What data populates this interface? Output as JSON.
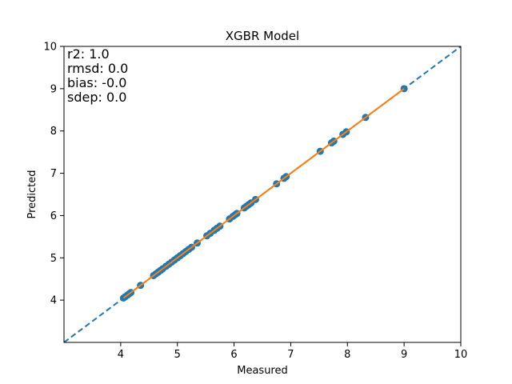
{
  "chart_data": {
    "type": "scatter",
    "title": "XGBR Model",
    "xlabel": "Measured",
    "ylabel": "Predicted",
    "xlim": [
      3,
      10
    ],
    "ylim": [
      3,
      10
    ],
    "xticks": [
      4,
      5,
      6,
      7,
      8,
      9,
      10
    ],
    "yticks": [
      4,
      5,
      6,
      7,
      8,
      9,
      10
    ],
    "grid": false,
    "colors": {
      "points": "#1f77b4",
      "fit": "#ff7f0e",
      "identity": "#1f77b4"
    },
    "stats": [
      "r2: 1.0",
      "rmsd: 0.0",
      "bias: -0.0",
      "sdep: 0.0"
    ],
    "points": [
      [
        4.05,
        4.05
      ],
      [
        4.08,
        4.08
      ],
      [
        4.12,
        4.12
      ],
      [
        4.15,
        4.15
      ],
      [
        4.18,
        4.18
      ],
      [
        4.35,
        4.35
      ],
      [
        4.58,
        4.58
      ],
      [
        4.62,
        4.62
      ],
      [
        4.66,
        4.66
      ],
      [
        4.7,
        4.7
      ],
      [
        4.74,
        4.74
      ],
      [
        4.8,
        4.8
      ],
      [
        4.85,
        4.85
      ],
      [
        4.9,
        4.9
      ],
      [
        4.95,
        4.95
      ],
      [
        5.0,
        5.0
      ],
      [
        5.05,
        5.05
      ],
      [
        5.1,
        5.1
      ],
      [
        5.15,
        5.15
      ],
      [
        5.2,
        5.2
      ],
      [
        5.25,
        5.25
      ],
      [
        5.35,
        5.35
      ],
      [
        5.52,
        5.52
      ],
      [
        5.58,
        5.58
      ],
      [
        5.65,
        5.65
      ],
      [
        5.7,
        5.7
      ],
      [
        5.75,
        5.75
      ],
      [
        5.92,
        5.92
      ],
      [
        5.98,
        5.98
      ],
      [
        6.02,
        6.02
      ],
      [
        6.05,
        6.05
      ],
      [
        6.18,
        6.18
      ],
      [
        6.22,
        6.22
      ],
      [
        6.26,
        6.26
      ],
      [
        6.3,
        6.3
      ],
      [
        6.38,
        6.38
      ],
      [
        6.75,
        6.75
      ],
      [
        6.88,
        6.88
      ],
      [
        6.92,
        6.92
      ],
      [
        7.52,
        7.52
      ],
      [
        7.72,
        7.72
      ],
      [
        7.76,
        7.76
      ],
      [
        7.92,
        7.92
      ],
      [
        7.98,
        7.98
      ],
      [
        8.32,
        8.32
      ],
      [
        9.0,
        9.0
      ]
    ],
    "fit_line": {
      "x": [
        4.05,
        9.0
      ],
      "y": [
        4.05,
        9.0
      ]
    },
    "identity_line": {
      "x": [
        3,
        10
      ],
      "y": [
        3,
        10
      ]
    }
  }
}
